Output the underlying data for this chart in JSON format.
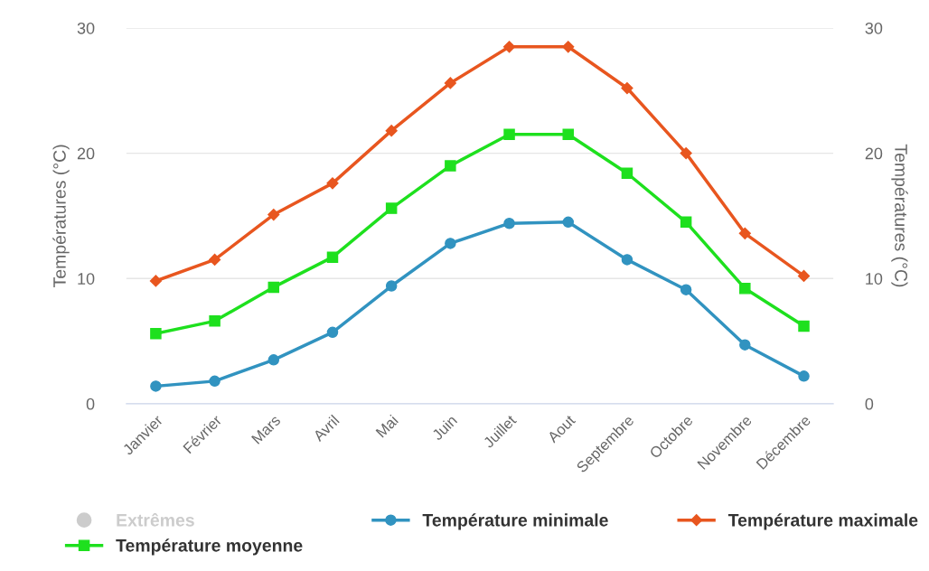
{
  "chart_data": {
    "type": "line",
    "ylabel": "Températures (°C)",
    "y2label": "Températures (°C)",
    "categories": [
      "Janvier",
      "Février",
      "Mars",
      "Avril",
      "Mai",
      "Juin",
      "Juillet",
      "Aout",
      "Septembre",
      "Octobre",
      "Novembre",
      "Décembre"
    ],
    "series": [
      {
        "name": "Extrêmes",
        "color": "#cccccc",
        "marker": "circle",
        "values": [
          null,
          null,
          null,
          null,
          null,
          null,
          null,
          null,
          null,
          null,
          null,
          null
        ]
      },
      {
        "name": "Température minimale",
        "color": "#3193c0",
        "marker": "circle",
        "values": [
          1.4,
          1.8,
          3.5,
          5.7,
          9.4,
          12.8,
          14.4,
          14.5,
          11.5,
          9.1,
          4.7,
          2.2
        ]
      },
      {
        "name": "Température maximale",
        "color": "#e8561f",
        "marker": "diamond",
        "values": [
          9.8,
          11.5,
          15.1,
          17.6,
          21.8,
          25.6,
          28.5,
          28.5,
          25.2,
          20.0,
          13.6,
          10.2
        ]
      },
      {
        "name": "Température moyenne",
        "color": "#1ee01e",
        "marker": "square",
        "values": [
          5.6,
          6.6,
          9.3,
          11.7,
          15.6,
          19.0,
          21.5,
          21.5,
          18.4,
          14.5,
          9.2,
          6.2
        ]
      }
    ],
    "ylim": [
      0,
      30
    ],
    "yticks": [
      0,
      10,
      20,
      30
    ],
    "y2lim": [
      0,
      30
    ],
    "y2ticks": [
      0,
      10,
      20,
      30
    ],
    "grid": "y",
    "legend": "bottom",
    "line_style": "solid"
  }
}
